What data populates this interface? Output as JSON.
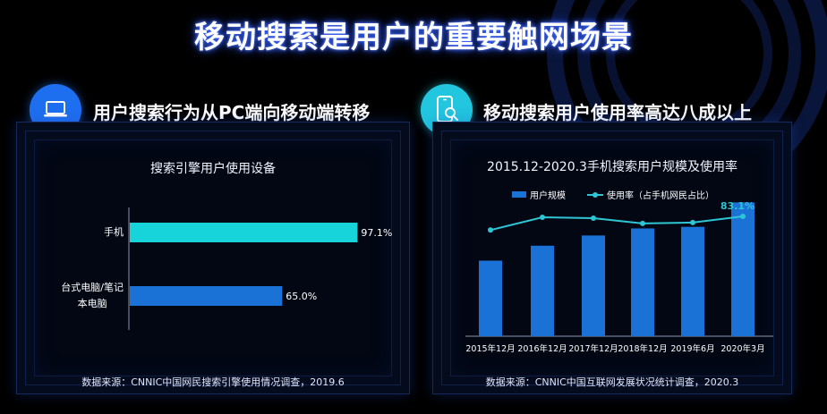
{
  "main_title": "移动搜索是用户的重要触网场景",
  "left_section": {
    "title": "用户搜索行为从PC端向移动端转移",
    "icon": "laptop-icon",
    "chart_title": "搜索引擎用户使用设备",
    "source": "数据来源：CNNIC中国网民搜索引擎使用情况调查，2019.6"
  },
  "right_section": {
    "title": "移动搜索用户使用率高达八成以上",
    "icon": "phone-search-icon",
    "chart_title": "2015.12-2020.3手机搜索用户规模及使用率",
    "source": "数据来源：CNNIC中国互联网发展状况统计调查，2020.3"
  },
  "colors": {
    "accent_blue": "#1e6ff0",
    "accent_cyan": "#22c6de",
    "bar_cyan": "#17d3da",
    "bar_blue": "#1a72d6",
    "line_cyan": "#2ec6d4"
  },
  "chart_data": [
    {
      "type": "bar",
      "orientation": "horizontal",
      "title": "搜索引擎用户使用设备",
      "categories": [
        "手机",
        "台式电脑/笔记本电脑"
      ],
      "category_lines": [
        [
          "手机"
        ],
        [
          "台式电脑/笔记",
          "本电脑"
        ]
      ],
      "values": [
        97.1,
        65.0
      ],
      "value_labels": [
        "97.1%",
        "65.0%"
      ],
      "unit": "%",
      "xlim": [
        0,
        100
      ],
      "grid": false
    },
    {
      "type": "bar",
      "title": "2015.12-2020.3手机搜索用户规模及使用率",
      "categories": [
        "2015年12月",
        "2016年12月",
        "2017年12月",
        "2018年12月",
        "2019年6月",
        "2020年3月"
      ],
      "series": [
        {
          "name": "用户规模",
          "type": "bar",
          "values": [
            4.8,
            5.75,
            6.4,
            6.85,
            6.95,
            8.5
          ]
        },
        {
          "name": "使用率（占手机网民占比）",
          "type": "line",
          "values": [
            77.1,
            82.7,
            82.3,
            80.0,
            80.4,
            83.1
          ]
        }
      ],
      "annotations": [
        "83.1%"
      ],
      "bar_ylim": [
        0,
        10
      ],
      "line_ylim": [
        0,
        100
      ],
      "legend": "top",
      "grid": false
    }
  ]
}
